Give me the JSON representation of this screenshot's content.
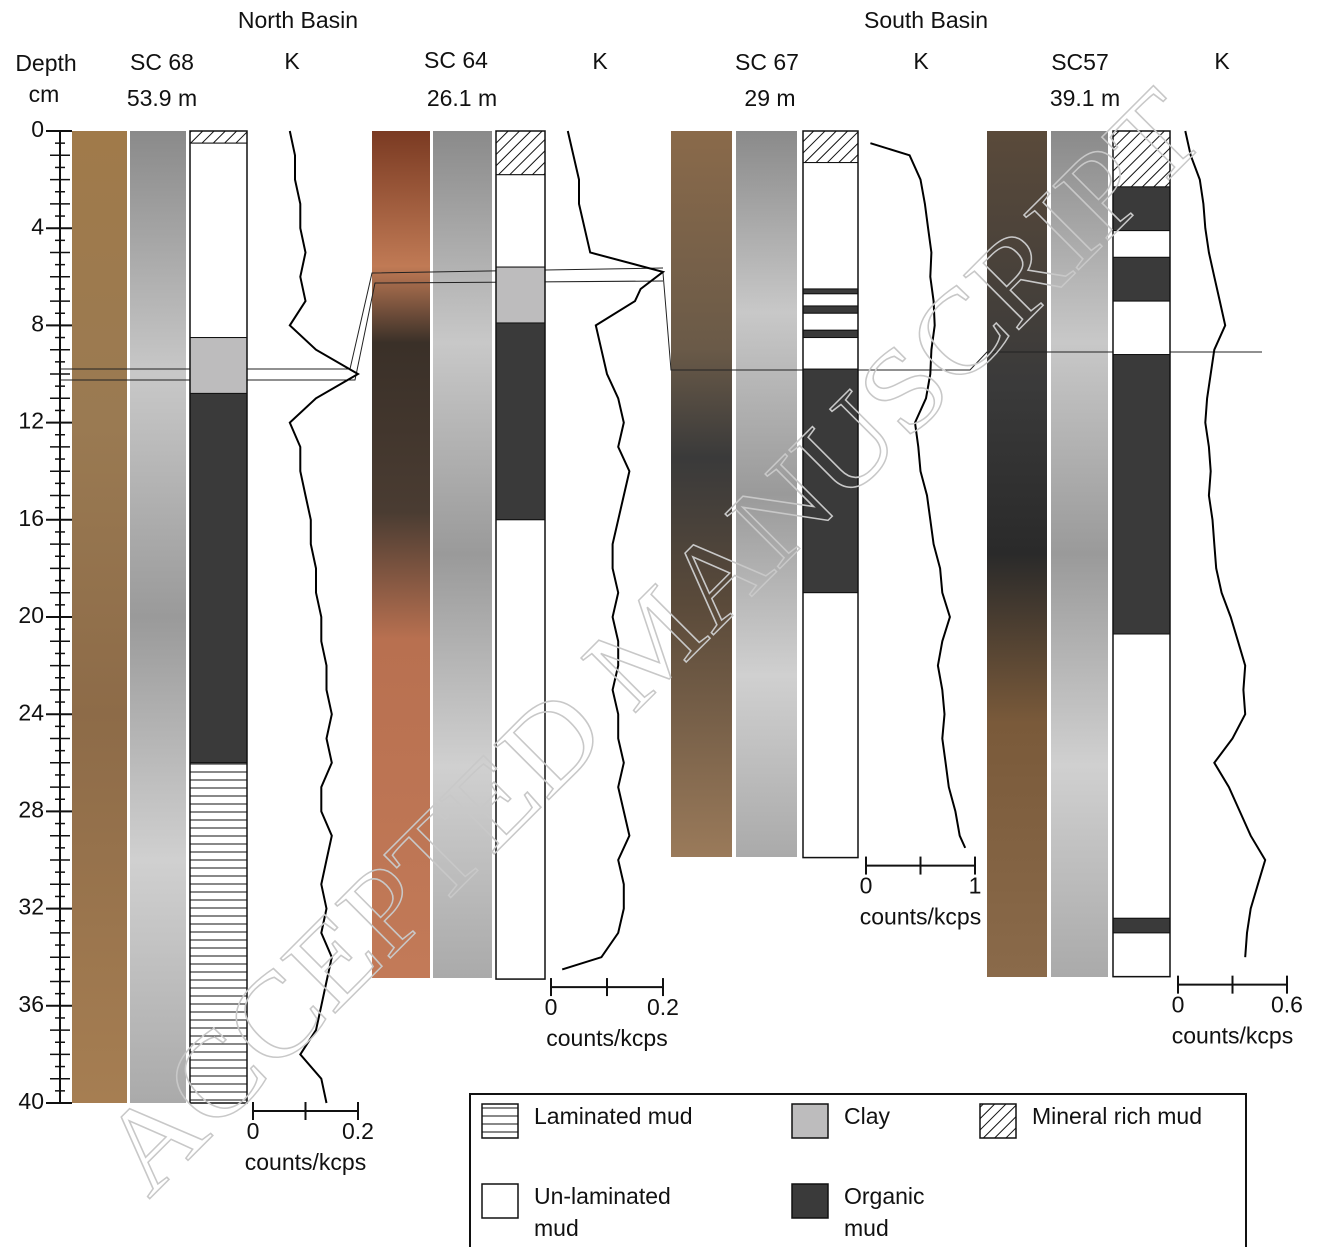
{
  "headers": {
    "north": "North Basin",
    "south": "South Basin"
  },
  "depth_axis": {
    "label_1": "Depth",
    "label_2": "cm",
    "lim": [
      0,
      40
    ],
    "ticks": [
      0,
      4,
      8,
      12,
      16,
      20,
      24,
      28,
      32,
      36,
      40
    ]
  },
  "cores": [
    {
      "name": "SC 68",
      "depth": "53.9 m",
      "k_label": "K",
      "bottom": 40,
      "k_lim": [
        0,
        0.2
      ],
      "k_ticks": [
        0,
        0.2
      ],
      "k_axis_label": "counts/kcps",
      "units": [
        {
          "top": 0,
          "bottom": 0.5,
          "type": "mineral"
        },
        {
          "top": 0.5,
          "bottom": 8.5,
          "type": "unlaminated"
        },
        {
          "top": 8.5,
          "bottom": 10.8,
          "type": "clay"
        },
        {
          "top": 10.8,
          "bottom": 26,
          "type": "organic"
        },
        {
          "top": 26,
          "bottom": 40,
          "type": "laminated"
        }
      ],
      "k_depths": [
        0,
        1,
        2,
        3,
        4,
        5,
        6,
        7,
        8,
        9,
        10,
        11,
        12,
        13,
        14,
        15,
        16,
        17,
        18,
        19,
        20,
        21,
        22,
        23,
        24,
        25,
        26,
        27,
        28,
        29,
        30,
        31,
        32,
        33,
        34,
        35,
        36,
        37,
        38,
        39,
        40
      ],
      "k_values": [
        0.07,
        0.08,
        0.08,
        0.09,
        0.09,
        0.1,
        0.09,
        0.1,
        0.07,
        0.12,
        0.2,
        0.12,
        0.07,
        0.09,
        0.09,
        0.1,
        0.11,
        0.11,
        0.12,
        0.12,
        0.13,
        0.13,
        0.14,
        0.14,
        0.15,
        0.14,
        0.15,
        0.13,
        0.13,
        0.15,
        0.14,
        0.13,
        0.14,
        0.13,
        0.15,
        0.14,
        0.13,
        0.12,
        0.09,
        0.13,
        0.14
      ]
    },
    {
      "name": "SC 64",
      "depth": "26.1 m",
      "k_label": "K",
      "bottom": 34.9,
      "k_lim": [
        0,
        0.2
      ],
      "k_ticks": [
        0,
        0.2
      ],
      "k_axis_label": "counts/kcps",
      "units": [
        {
          "top": 0,
          "bottom": 1.8,
          "type": "mineral"
        },
        {
          "top": 1.8,
          "bottom": 5.6,
          "type": "unlaminated"
        },
        {
          "top": 5.6,
          "bottom": 7.9,
          "type": "clay"
        },
        {
          "top": 7.9,
          "bottom": 16,
          "type": "organic"
        },
        {
          "top": 16,
          "bottom": 34.9,
          "type": "unlaminated"
        }
      ],
      "k_depths": [
        0,
        1,
        2,
        3,
        4,
        5,
        5.8,
        6.5,
        7,
        8,
        9,
        10,
        11,
        12,
        13,
        14,
        15,
        16,
        17,
        18,
        19,
        20,
        21,
        22,
        23,
        24,
        25,
        26,
        27,
        28,
        29,
        30,
        31,
        32,
        33,
        34,
        34.5
      ],
      "k_values": [
        0.03,
        0.04,
        0.05,
        0.05,
        0.06,
        0.07,
        0.2,
        0.16,
        0.15,
        0.08,
        0.09,
        0.1,
        0.12,
        0.13,
        0.12,
        0.14,
        0.13,
        0.12,
        0.11,
        0.11,
        0.12,
        0.11,
        0.12,
        0.12,
        0.11,
        0.12,
        0.12,
        0.13,
        0.12,
        0.13,
        0.14,
        0.12,
        0.13,
        0.13,
        0.12,
        0.09,
        0.02
      ]
    },
    {
      "name": "SC 67",
      "depth": "29 m",
      "k_label": "K",
      "bottom": 29.9,
      "k_lim": [
        0,
        1
      ],
      "k_ticks": [
        0,
        1
      ],
      "k_axis_label": "counts/kcps",
      "units": [
        {
          "top": 0,
          "bottom": 1.3,
          "type": "mineral"
        },
        {
          "top": 1.3,
          "bottom": 6.5,
          "type": "unlaminated"
        },
        {
          "top": 6.5,
          "bottom": 6.7,
          "type": "organic"
        },
        {
          "top": 6.7,
          "bottom": 7.2,
          "type": "unlaminated"
        },
        {
          "top": 7.2,
          "bottom": 7.5,
          "type": "organic"
        },
        {
          "top": 7.5,
          "bottom": 8.2,
          "type": "unlaminated"
        },
        {
          "top": 8.2,
          "bottom": 8.5,
          "type": "organic"
        },
        {
          "top": 8.5,
          "bottom": 9.8,
          "type": "unlaminated"
        },
        {
          "top": 9.8,
          "bottom": 19,
          "type": "organic"
        },
        {
          "top": 19,
          "bottom": 29.9,
          "type": "unlaminated"
        }
      ],
      "k_depths": [
        0.5,
        1,
        2,
        3,
        4,
        5,
        6,
        7,
        8,
        9,
        10,
        11,
        12,
        13,
        14,
        15,
        16,
        17,
        18,
        19,
        20,
        21,
        22,
        23,
        24,
        25,
        26,
        27,
        28,
        29,
        29.5
      ],
      "k_values": [
        0.04,
        0.4,
        0.5,
        0.54,
        0.57,
        0.6,
        0.59,
        0.62,
        0.63,
        0.6,
        0.59,
        0.55,
        0.45,
        0.48,
        0.5,
        0.56,
        0.59,
        0.62,
        0.68,
        0.7,
        0.77,
        0.7,
        0.66,
        0.7,
        0.72,
        0.7,
        0.73,
        0.76,
        0.82,
        0.86,
        0.91
      ]
    },
    {
      "name": "SC57",
      "depth": "39.1 m",
      "k_label": "K",
      "bottom": 34.8,
      "k_lim": [
        0,
        0.6
      ],
      "k_ticks": [
        0,
        0.6
      ],
      "k_axis_label": "counts/kcps",
      "units": [
        {
          "top": 0,
          "bottom": 2.3,
          "type": "mineral"
        },
        {
          "top": 2.3,
          "bottom": 4.1,
          "type": "organic"
        },
        {
          "top": 4.1,
          "bottom": 5.2,
          "type": "unlaminated"
        },
        {
          "top": 5.2,
          "bottom": 7,
          "type": "organic"
        },
        {
          "top": 7,
          "bottom": 9.2,
          "type": "unlaminated"
        },
        {
          "top": 9.2,
          "bottom": 20.7,
          "type": "organic"
        },
        {
          "top": 20.7,
          "bottom": 32.4,
          "type": "unlaminated"
        },
        {
          "top": 32.4,
          "bottom": 33,
          "type": "organic"
        },
        {
          "top": 33,
          "bottom": 34.8,
          "type": "unlaminated"
        }
      ],
      "k_depths": [
        0,
        1,
        2,
        3,
        4,
        5,
        6,
        7,
        8,
        9,
        10,
        11,
        12,
        13,
        14,
        15,
        16,
        17,
        18,
        19,
        20,
        21,
        22,
        23,
        24,
        25,
        26,
        27,
        28,
        29,
        30,
        31,
        32,
        33,
        34
      ],
      "k_values": [
        0.04,
        0.07,
        0.12,
        0.14,
        0.15,
        0.17,
        0.2,
        0.23,
        0.26,
        0.2,
        0.18,
        0.16,
        0.15,
        0.17,
        0.18,
        0.17,
        0.19,
        0.2,
        0.21,
        0.24,
        0.29,
        0.33,
        0.37,
        0.36,
        0.37,
        0.3,
        0.2,
        0.28,
        0.34,
        0.4,
        0.48,
        0.44,
        0.4,
        0.38,
        0.37
      ]
    }
  ],
  "legend": [
    {
      "lines": [
        "Laminated mud"
      ],
      "type": "laminated"
    },
    {
      "lines": [
        "Clay"
      ],
      "type": "clay"
    },
    {
      "lines": [
        "Mineral rich mud"
      ],
      "type": "mineral"
    },
    {
      "lines": [
        "Un-laminated",
        "mud"
      ],
      "type": "unlaminated"
    },
    {
      "lines": [
        "Organic",
        "mud"
      ],
      "type": "organic"
    }
  ],
  "watermark": "ACCEPTED MANUSCRIPT"
}
